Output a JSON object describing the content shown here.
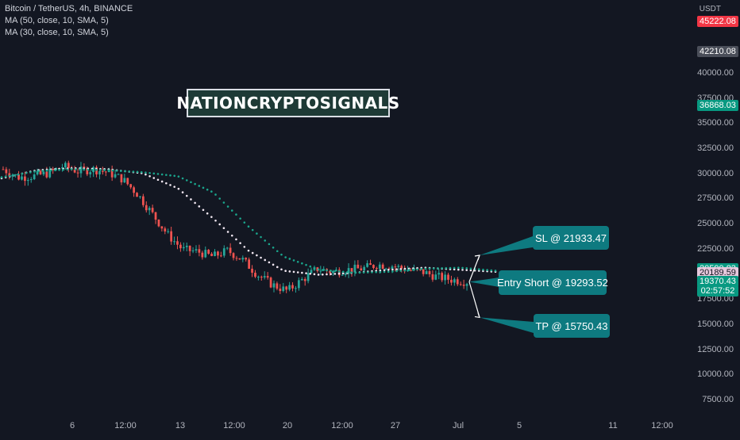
{
  "legend": {
    "symbol": "Bitcoin / TetherUS, 4h, BINANCE",
    "ma1": "MA (50, close, 10, SMA, 5)",
    "ma2": "MA (30, close, 10, SMA, 5)"
  },
  "watermark": "NATIONCRYPTOSIGNALS",
  "currency": "USDT",
  "callouts": {
    "sl": "SL @ 21933.47",
    "entry": "Entry Short @ 19293.52",
    "tp": "TP @ 15750.43"
  },
  "price_tags": [
    {
      "label": "45222.08",
      "value": 45222.08,
      "color": "#f23645"
    },
    {
      "label": "42210.08",
      "value": 42210.08,
      "color": "#4a4e59"
    },
    {
      "label": "36868.03",
      "value": 36868.03,
      "color": "#089981"
    },
    {
      "label": "20590.83",
      "value": 20590.83,
      "color": "#089981"
    },
    {
      "label": "20189.59",
      "value": 20189.59,
      "color": "#e6c8dc",
      "text_color": "#131722"
    },
    {
      "label": "19370.43",
      "value": 19370.43,
      "color": "#089981"
    },
    {
      "label": "02:57:52",
      "value": 18400,
      "color": "#089981"
    }
  ],
  "colors": {
    "background": "#131722",
    "up": "#26a69a",
    "down": "#ef5350",
    "ma_white": "#f0e6f0",
    "ma_teal": "#1aa58c",
    "callout": "#0e7a80"
  },
  "chart_data": {
    "type": "candlestick",
    "title": "Bitcoin / TetherUS, 4h, BINANCE",
    "y_axis": {
      "range": [
        5800,
        46000
      ],
      "ticks": [
        7500,
        10000,
        12500,
        15000,
        17500,
        20000,
        22500,
        25000,
        27500,
        30000,
        32500,
        35000,
        37500,
        40000
      ]
    },
    "x_axis": {
      "ticks": [
        "6",
        "12:00",
        "13",
        "12:00",
        "20",
        "12:00",
        "27",
        "Jul",
        "5",
        "11",
        "12:00"
      ]
    },
    "trade_levels": {
      "stop_loss": 21933.47,
      "entry_short": 19293.52,
      "take_profit": 15750.43
    },
    "series": [
      {
        "name": "MA (50, close, 10, SMA, 5)",
        "values": [
          29600,
          30400,
          30600,
          30500,
          30100,
          28600,
          25600,
          22400,
          20400,
          20000,
          20200,
          20500,
          20700,
          20500,
          20300
        ]
      },
      {
        "name": "MA (30, close, 10, SMA, 5)",
        "values": [
          29700,
          30300,
          30500,
          30400,
          30200,
          29800,
          28200,
          24800,
          21800,
          20500,
          20200,
          20300,
          20600,
          20700,
          20400
        ]
      }
    ],
    "closes": [
      30500,
      29700,
      29800,
      30100,
      30800,
      30300,
      30500,
      30200,
      29500,
      28000,
      26000,
      24000,
      22500,
      22300,
      21800,
      22400,
      21500,
      20000,
      19000,
      18400,
      19500,
      20600,
      20300,
      20500,
      20600,
      21000,
      20900,
      20500,
      20300,
      19800,
      19500,
      19300
    ]
  }
}
